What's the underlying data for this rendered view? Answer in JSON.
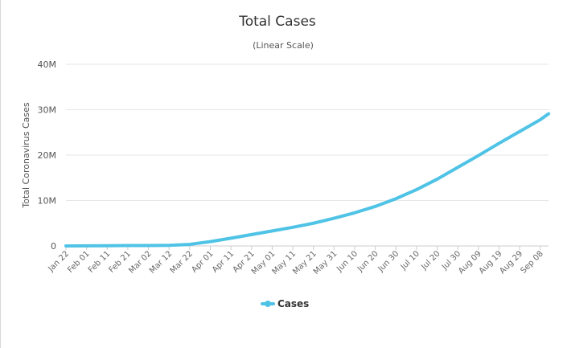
{
  "chart_data": {
    "type": "line",
    "title": "Total Cases",
    "subtitle": "(Linear Scale)",
    "xlabel": "",
    "ylabel": "Total Coronavirus Cases",
    "ylim": [
      0,
      40000000
    ],
    "yticks": [
      {
        "value": 0,
        "label": "0"
      },
      {
        "value": 10000000,
        "label": "10M"
      },
      {
        "value": 20000000,
        "label": "20M"
      },
      {
        "value": 30000000,
        "label": "30M"
      },
      {
        "value": 40000000,
        "label": "40M"
      }
    ],
    "categories": [
      "Jan 22",
      "Feb 01",
      "Feb 11",
      "Feb 21",
      "Mar 02",
      "Mar 12",
      "Mar 22",
      "Apr 01",
      "Apr 11",
      "Apr 21",
      "May 01",
      "May 11",
      "May 21",
      "May 31",
      "Jun 10",
      "Jun 20",
      "Jun 30",
      "Jul 10",
      "Jul 20",
      "Jul 30",
      "Aug 09",
      "Aug 19",
      "Aug 29",
      "Sep 08"
    ],
    "series": [
      {
        "name": "Cases",
        "color": "#4fc3e6",
        "values": [
          0,
          15000,
          45000,
          80000,
          90000,
          130000,
          340000,
          950000,
          1700000,
          2500000,
          3300000,
          4100000,
          5000000,
          6100000,
          7300000,
          8700000,
          10400000,
          12400000,
          14700000,
          17300000,
          19900000,
          22600000,
          25200000,
          27800000
        ],
        "last": {
          "x_offset_days": 4,
          "value": 29100000
        }
      }
    ],
    "grid": true,
    "legend": "bottom-center"
  }
}
